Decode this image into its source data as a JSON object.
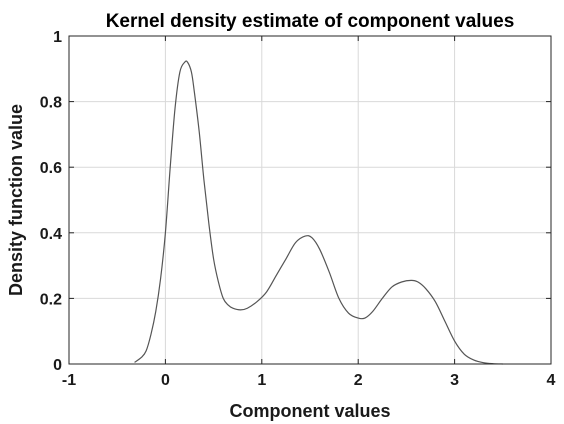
{
  "chart_data": {
    "type": "line",
    "title": "Kernel density estimate of component values",
    "xlabel": "Component values",
    "ylabel": "Density function value",
    "xlim": [
      -1,
      4
    ],
    "ylim": [
      0,
      1
    ],
    "xticks": [
      -1,
      0,
      1,
      2,
      3,
      4
    ],
    "yticks": [
      0,
      0.2,
      0.4,
      0.6,
      0.8,
      1
    ],
    "xtick_labels": [
      "-1",
      "0",
      "1",
      "2",
      "3",
      "4"
    ],
    "ytick_labels": [
      "0",
      "0.2",
      "0.4",
      "0.6",
      "0.8",
      "1"
    ],
    "grid": true,
    "series": [
      {
        "color": "#555555",
        "x": [
          -0.32,
          -0.25,
          -0.2,
          -0.15,
          -0.1,
          -0.05,
          0.0,
          0.05,
          0.1,
          0.15,
          0.2,
          0.23,
          0.27,
          0.3,
          0.35,
          0.4,
          0.45,
          0.5,
          0.55,
          0.6,
          0.65,
          0.7,
          0.78,
          0.85,
          0.95,
          1.05,
          1.15,
          1.25,
          1.35,
          1.45,
          1.52,
          1.6,
          1.7,
          1.8,
          1.9,
          2.0,
          2.07,
          2.15,
          2.25,
          2.35,
          2.45,
          2.55,
          2.62,
          2.7,
          2.8,
          2.9,
          3.0,
          3.1,
          3.2,
          3.3,
          3.4,
          3.5
        ],
        "y": [
          0.005,
          0.02,
          0.04,
          0.09,
          0.16,
          0.26,
          0.4,
          0.6,
          0.78,
          0.89,
          0.92,
          0.92,
          0.89,
          0.83,
          0.71,
          0.56,
          0.43,
          0.32,
          0.25,
          0.2,
          0.18,
          0.17,
          0.165,
          0.17,
          0.19,
          0.22,
          0.27,
          0.32,
          0.37,
          0.39,
          0.385,
          0.35,
          0.28,
          0.2,
          0.155,
          0.14,
          0.14,
          0.16,
          0.2,
          0.235,
          0.25,
          0.255,
          0.25,
          0.23,
          0.19,
          0.13,
          0.07,
          0.03,
          0.012,
          0.004,
          0.001,
          0.0
        ]
      }
    ]
  }
}
